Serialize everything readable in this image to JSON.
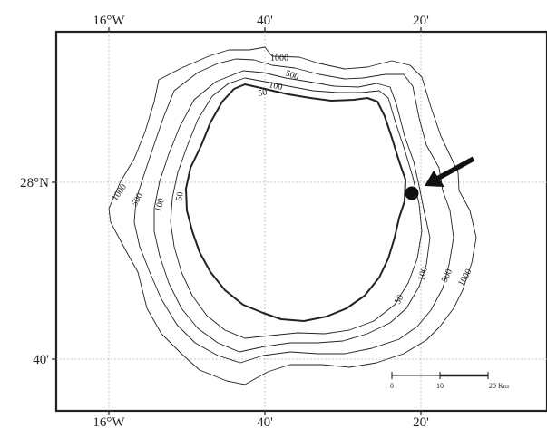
{
  "map": {
    "longitude_labels": [
      "16°W",
      "40'",
      "20'"
    ],
    "latitude_labels": [
      "28°N",
      "40'"
    ],
    "contour_labels": {
      "c1000_top": "1000",
      "c500_top": "500",
      "c100_top": "100",
      "c50_top": "50",
      "c1000_left": "1000",
      "c500_left": "500",
      "c100_left": "100",
      "c50_left": "50",
      "c50_right": "50",
      "c100_right": "100",
      "c500_right": "500",
      "c1000_right": "1000"
    },
    "scale_bar": {
      "ticks": [
        "0",
        "10",
        "20 Km"
      ]
    },
    "marker": "arrow pointing to a black dot on the east coast",
    "colors": {
      "line": "#222222",
      "grid": "#9a9a9a",
      "background": "#ffffff"
    }
  }
}
